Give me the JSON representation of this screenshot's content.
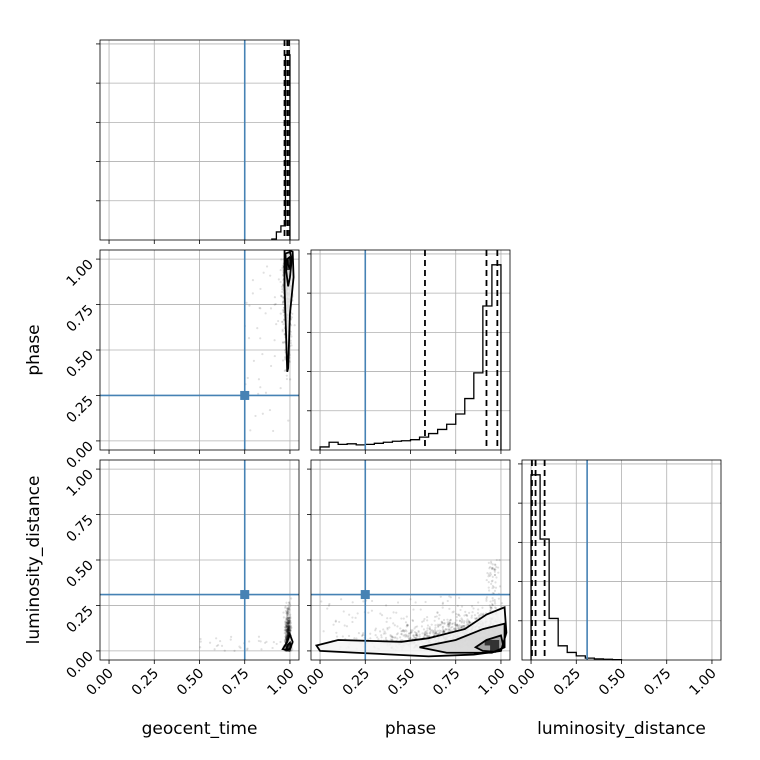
{
  "chart_data": {
    "type": "corner",
    "parameters": [
      "geocent_time",
      "phase",
      "luminosity_distance"
    ],
    "ticks": [
      0.0,
      0.25,
      0.5,
      0.75,
      1.0
    ],
    "tick_labels": [
      "0.00",
      "0.25",
      "0.50",
      "0.75",
      "1.00"
    ],
    "range": [
      -0.05,
      1.05
    ],
    "grid": true,
    "truths": {
      "geocent_time": 0.75,
      "phase": 0.25,
      "luminosity_distance": 0.31
    },
    "quantiles": {
      "geocent_time": [
        0.97,
        0.985,
        0.995
      ],
      "phase": [
        0.58,
        0.92,
        0.98
      ],
      "luminosity_distance": [
        0.005,
        0.025,
        0.075
      ]
    },
    "histograms": {
      "geocent_time": {
        "edges": [
          0.9,
          0.925,
          0.95,
          0.975,
          1.0
        ],
        "counts": [
          0.005,
          0.04,
          0.07,
          0.92
        ]
      },
      "phase": {
        "edges": [
          0.0,
          0.05,
          0.1,
          0.15,
          0.2,
          0.25,
          0.3,
          0.35,
          0.4,
          0.45,
          0.5,
          0.55,
          0.6,
          0.65,
          0.7,
          0.75,
          0.8,
          0.85,
          0.9,
          0.95,
          1.0
        ],
        "counts": [
          0.012,
          0.03,
          0.022,
          0.024,
          0.02,
          0.022,
          0.026,
          0.03,
          0.034,
          0.036,
          0.04,
          0.05,
          0.064,
          0.08,
          0.1,
          0.14,
          0.2,
          0.3,
          0.56,
          0.72
        ]
      },
      "luminosity_distance": {
        "edges": [
          0.0,
          0.05,
          0.1,
          0.15,
          0.2,
          0.25,
          0.3,
          0.35,
          0.4,
          0.45,
          0.5
        ],
        "counts": [
          0.98,
          0.64,
          0.22,
          0.075,
          0.04,
          0.022,
          0.01,
          0.006,
          0.004,
          0.002
        ]
      }
    },
    "panels_2d": [
      {
        "x": "geocent_time",
        "y": "phase",
        "contours": [
          [
            [
              0.97,
              1.05
            ],
            [
              0.97,
              0.85
            ],
            [
              0.978,
              0.6
            ],
            [
              0.985,
              0.38
            ],
            [
              0.99,
              0.4
            ],
            [
              1.0,
              0.7
            ],
            [
              1.02,
              0.9
            ],
            [
              1.015,
              1.04
            ],
            [
              0.995,
              1.05
            ]
          ],
          [
            [
              0.975,
              1.03
            ],
            [
              0.98,
              0.93
            ],
            [
              0.99,
              0.85
            ],
            [
              1.0,
              0.9
            ],
            [
              1.01,
              1.0
            ],
            [
              1.0,
              1.04
            ]
          ],
          [
            [
              0.985,
              1.0
            ],
            [
              0.988,
              0.97
            ],
            [
              1.0,
              0.95
            ],
            [
              1.005,
              0.99
            ],
            [
              0.998,
              1.01
            ]
          ]
        ],
        "density_blocks": [
          [
            0.98,
            0.94,
            0.02,
            0.06
          ]
        ]
      },
      {
        "x": "geocent_time",
        "y": "luminosity_distance",
        "contours": [
          [
            [
              0.96,
              0.01
            ],
            [
              0.985,
              0.05
            ],
            [
              1.0,
              0.09
            ],
            [
              1.015,
              0.05
            ],
            [
              1.0,
              0.01
            ],
            [
              0.985,
              0.005
            ]
          ],
          [
            [
              0.98,
              0.012
            ],
            [
              0.99,
              0.035
            ],
            [
              1.0,
              0.045
            ],
            [
              1.005,
              0.02
            ],
            [
              0.995,
              0.008
            ]
          ]
        ],
        "density_blocks": [
          [
            0.975,
            0.0,
            0.03,
            0.04
          ]
        ]
      },
      {
        "x": "phase",
        "y": "luminosity_distance",
        "contours": [
          [
            [
              -0.02,
              0.03
            ],
            [
              0.1,
              0.06
            ],
            [
              0.45,
              0.05
            ],
            [
              0.6,
              0.07
            ],
            [
              0.8,
              0.12
            ],
            [
              0.92,
              0.2
            ],
            [
              1.02,
              0.24
            ],
            [
              1.03,
              0.1
            ],
            [
              1.0,
              0.0
            ],
            [
              0.85,
              -0.02
            ],
            [
              0.6,
              -0.03
            ],
            [
              0.2,
              -0.01
            ],
            [
              0.0,
              0.0
            ]
          ],
          [
            [
              0.55,
              0.02
            ],
            [
              0.75,
              0.06
            ],
            [
              0.9,
              0.12
            ],
            [
              1.02,
              0.15
            ],
            [
              1.02,
              0.02
            ],
            [
              0.95,
              -0.01
            ],
            [
              0.7,
              -0.01
            ]
          ],
          [
            [
              0.86,
              0.02
            ],
            [
              0.92,
              0.06
            ],
            [
              1.0,
              0.085
            ],
            [
              1.015,
              0.02
            ],
            [
              0.97,
              -0.005
            ],
            [
              0.9,
              0.0
            ]
          ]
        ],
        "density_blocks": [
          [
            0.94,
            0.0,
            0.05,
            0.06
          ],
          [
            0.91,
            0.03,
            0.04,
            0.03
          ]
        ]
      }
    ]
  }
}
